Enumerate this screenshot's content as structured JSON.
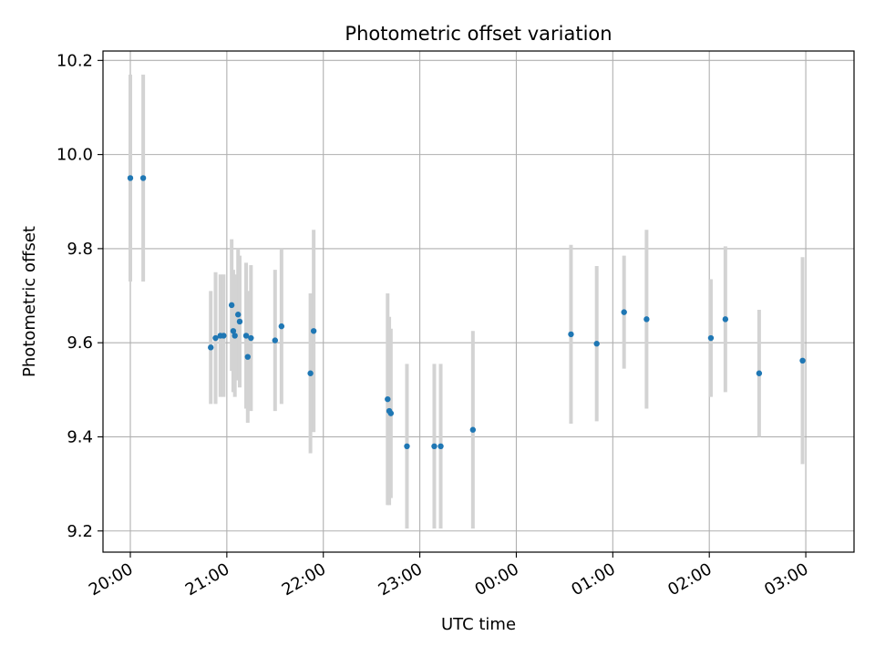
{
  "chart_data": {
    "type": "scatter",
    "title": "Photometric offset variation",
    "xlabel": "UTC time",
    "ylabel": "Photometric offset",
    "grid": true,
    "xlim": [
      "19:43",
      "03:30"
    ],
    "ylim": [
      9.155,
      10.22
    ],
    "x_ticks": [
      "20:00",
      "21:00",
      "22:00",
      "23:00",
      "00:00",
      "01:00",
      "02:00",
      "03:00"
    ],
    "y_ticks": [
      9.2,
      9.4,
      9.6,
      9.8,
      10.0,
      10.2
    ],
    "y_tick_labels": [
      "9.2",
      "9.4",
      "9.6",
      "9.8",
      "10.0",
      "10.2"
    ],
    "x_tick_rotation_deg": 30,
    "error_bar_color": "#d3d3d3",
    "point_color": "#1f77b4",
    "points": [
      {
        "time": "20:00",
        "y": 9.95,
        "err": 0.22
      },
      {
        "time": "20:08",
        "y": 9.95,
        "err": 0.22
      },
      {
        "time": "20:50",
        "y": 9.59,
        "err": 0.12
      },
      {
        "time": "20:53",
        "y": 9.61,
        "err": 0.14
      },
      {
        "time": "20:56",
        "y": 9.615,
        "err": 0.13
      },
      {
        "time": "20:58",
        "y": 9.615,
        "err": 0.13
      },
      {
        "time": "21:03",
        "y": 9.68,
        "err": 0.14
      },
      {
        "time": "21:04",
        "y": 9.625,
        "err": 0.13
      },
      {
        "time": "21:05",
        "y": 9.615,
        "err": 0.13
      },
      {
        "time": "21:07",
        "y": 9.66,
        "err": 0.14
      },
      {
        "time": "21:08",
        "y": 9.645,
        "err": 0.14
      },
      {
        "time": "21:12",
        "y": 9.615,
        "err": 0.155
      },
      {
        "time": "21:13",
        "y": 9.57,
        "err": 0.14
      },
      {
        "time": "21:15",
        "y": 9.61,
        "err": 0.155
      },
      {
        "time": "21:30",
        "y": 9.605,
        "err": 0.15
      },
      {
        "time": "21:34",
        "y": 9.635,
        "err": 0.165
      },
      {
        "time": "21:52",
        "y": 9.535,
        "err": 0.17
      },
      {
        "time": "21:54",
        "y": 9.625,
        "err": 0.215
      },
      {
        "time": "22:40",
        "y": 9.48,
        "err": 0.225
      },
      {
        "time": "22:41",
        "y": 9.455,
        "err": 0.2
      },
      {
        "time": "22:42",
        "y": 9.45,
        "err": 0.18
      },
      {
        "time": "22:52",
        "y": 9.38,
        "err": 0.175
      },
      {
        "time": "23:09",
        "y": 9.38,
        "err": 0.175
      },
      {
        "time": "23:13",
        "y": 9.38,
        "err": 0.175
      },
      {
        "time": "23:33",
        "y": 9.415,
        "err": 0.21
      },
      {
        "time": "00:34",
        "y": 9.618,
        "err": 0.19
      },
      {
        "time": "00:50",
        "y": 9.598,
        "err": 0.165
      },
      {
        "time": "01:07",
        "y": 9.665,
        "err": 0.12
      },
      {
        "time": "01:21",
        "y": 9.65,
        "err": 0.19
      },
      {
        "time": "02:01",
        "y": 9.61,
        "err": 0.125
      },
      {
        "time": "02:10",
        "y": 9.65,
        "err": 0.155
      },
      {
        "time": "02:31",
        "y": 9.535,
        "err": 0.135
      },
      {
        "time": "02:58",
        "y": 9.562,
        "err": 0.22
      }
    ]
  }
}
